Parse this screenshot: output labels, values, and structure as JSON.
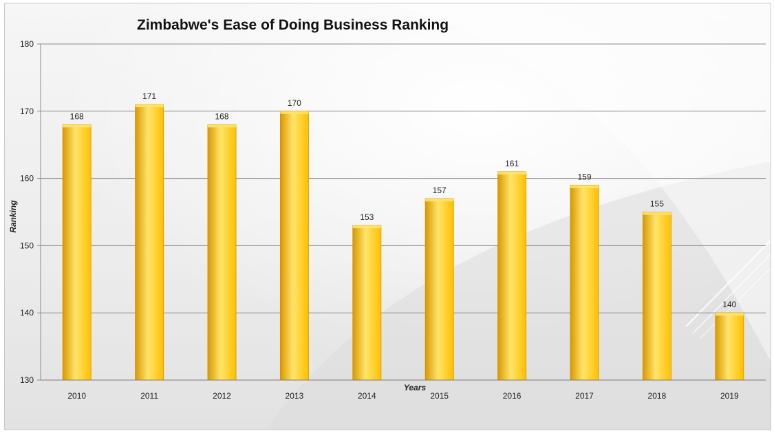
{
  "chart_data": {
    "type": "bar",
    "title": "Zimbabwe's Ease of Doing Business Ranking",
    "xlabel": "Years",
    "ylabel": "Ranking",
    "categories": [
      "2010",
      "2011",
      "2012",
      "2013",
      "2014",
      "2015",
      "2016",
      "2017",
      "2018",
      "2019"
    ],
    "values": [
      168,
      171,
      168,
      170,
      153,
      157,
      161,
      159,
      155,
      140
    ],
    "ylim": [
      130,
      180
    ],
    "yticks": [
      130,
      140,
      150,
      160,
      170,
      180
    ],
    "grid": true,
    "legend": "none",
    "bar_color": "#FFC000",
    "bar_highlight": "#FFE46A",
    "bar_shadow": "#D99800"
  }
}
